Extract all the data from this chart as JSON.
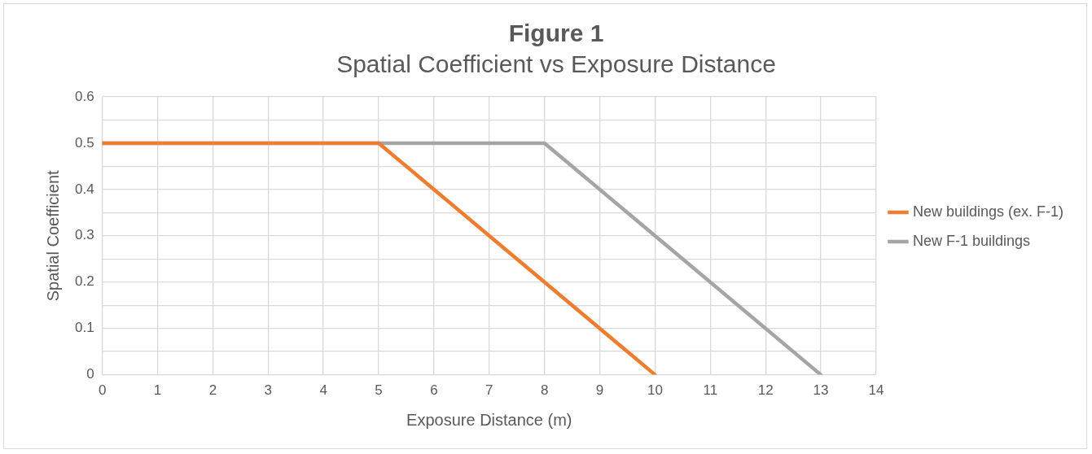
{
  "chart_data": {
    "type": "line",
    "title": "Figure 1",
    "subtitle": "Spatial Coefficient vs Exposure Distance",
    "xlabel": "Exposure Distance (m)",
    "ylabel": "Spatial Coefficient",
    "xlim": [
      0,
      14
    ],
    "xticks": [
      0,
      1,
      2,
      3,
      4,
      5,
      6,
      7,
      8,
      9,
      10,
      11,
      12,
      13,
      14
    ],
    "ylim": [
      0,
      0.6
    ],
    "yticks": [
      0,
      {
        "value": 0.05,
        "label": null
      },
      0.1,
      {
        "value": 0.15,
        "label": null
      },
      0.2,
      {
        "value": 0.25,
        "label": null
      },
      0.3,
      {
        "value": 0.35,
        "label": null
      },
      0.4,
      {
        "value": 0.45,
        "label": null
      },
      0.5,
      {
        "value": 0.55,
        "label": null
      },
      0.6
    ],
    "grid": true,
    "legend": "right",
    "marker": "none",
    "line_style": "solid",
    "series": [
      {
        "name": "New buildings (ex. F-1)",
        "color": "#ed7d31",
        "x": [
          0,
          5,
          10
        ],
        "values": [
          0.5,
          0.5,
          0
        ]
      },
      {
        "name": "New F-1 buildings",
        "color": "#a5a5a5",
        "x": [
          0,
          8,
          13
        ],
        "values": [
          0.5,
          0.5,
          0
        ]
      }
    ]
  }
}
